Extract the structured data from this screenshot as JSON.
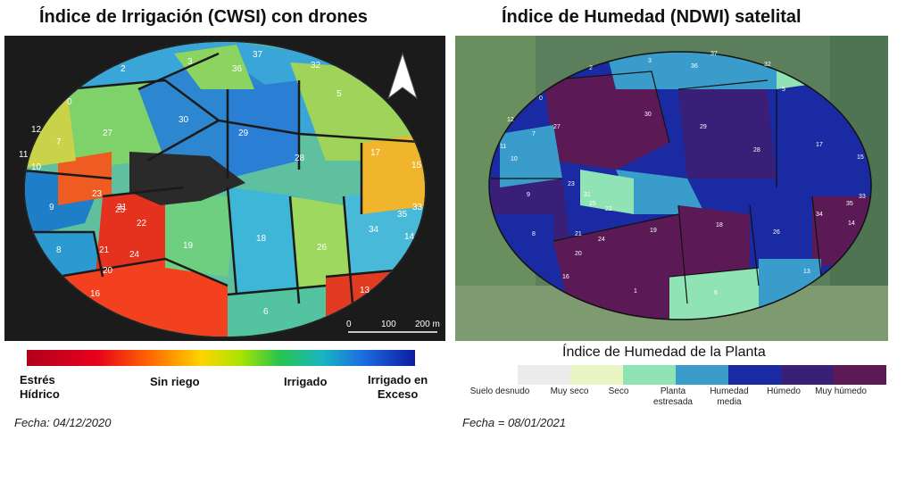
{
  "left": {
    "title": "Índice de Irrigación (CWSI) con drones",
    "date": "Fecha: 04/12/2020",
    "scale_labels": [
      "0",
      "100",
      "200 m"
    ],
    "legend_labels": [
      "Estrés\nHídrico",
      "Sin riego",
      "Irrigado",
      "Irrigado en\nExceso"
    ],
    "parcels": [
      "0",
      "2",
      "3",
      "5",
      "6",
      "7",
      "8",
      "9",
      "10",
      "11",
      "12",
      "13",
      "14",
      "15",
      "16",
      "17",
      "18",
      "19",
      "20",
      "21",
      "22",
      "23",
      "24",
      "25",
      "26",
      "27",
      "28",
      "29",
      "30",
      "31",
      "32",
      "33",
      "34",
      "35",
      "36",
      "37"
    ],
    "north_arrow_icon": "north-arrow-icon"
  },
  "right": {
    "title": "Índice de Humedad (NDWI) satelital",
    "date": "Fecha = 08/01/2021",
    "legend_title": "Índice de Humedad de la Planta",
    "legend_items": [
      {
        "label": "Suelo desnudo",
        "color": "#ececec"
      },
      {
        "label": "Muy seco",
        "color": "#e9f6c4"
      },
      {
        "label": "Seco",
        "color": "#8fe3b4"
      },
      {
        "label": "Planta\nestresada",
        "color": "#3a9ccb"
      },
      {
        "label": "Humedad\nmedia",
        "color": "#1a2aa3"
      },
      {
        "label": "Húmedo",
        "color": "#3a1f78"
      },
      {
        "label": "Muy húmedo",
        "color": "#5b1a55"
      }
    ],
    "parcels": [
      "0",
      "1",
      "2",
      "3",
      "5",
      "6",
      "7",
      "8",
      "9",
      "10",
      "11",
      "12",
      "13",
      "14",
      "15",
      "16",
      "17",
      "18",
      "19",
      "20",
      "21",
      "22",
      "23",
      "24",
      "25",
      "26",
      "27",
      "28",
      "29",
      "30",
      "31",
      "32",
      "33",
      "34",
      "35",
      "36",
      "37"
    ]
  }
}
